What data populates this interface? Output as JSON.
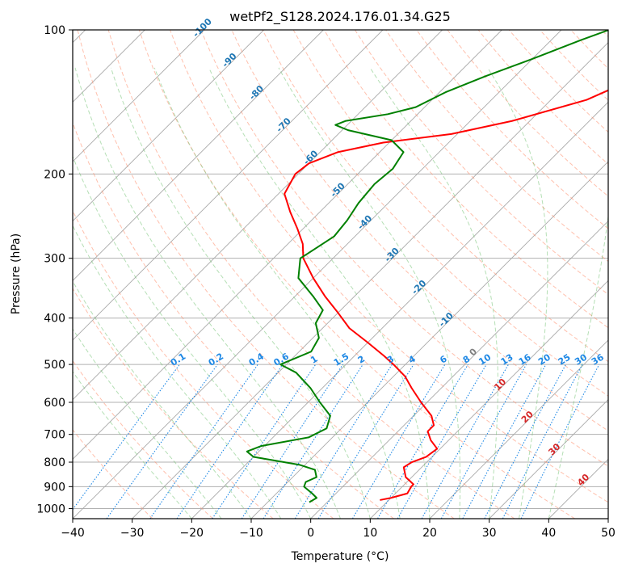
{
  "chart_data": {
    "type": "line",
    "title": "wetPf2_S128.2024.176.01.34.G25",
    "xlabel": "Temperature (°C)",
    "ylabel": "Pressure (hPa)",
    "xlim": [
      -40,
      50
    ],
    "ylim": [
      1050,
      100
    ],
    "x_ticks": [
      -40,
      -30,
      -20,
      -10,
      0,
      10,
      20,
      30,
      40,
      50
    ],
    "y_ticks": [
      100,
      200,
      300,
      400,
      500,
      600,
      700,
      800,
      900,
      1000
    ],
    "y_scale": "log",
    "grid": true,
    "isotherm_labels": [
      "-100",
      "-90",
      "-80",
      "-70",
      "-60",
      "-50",
      "-40",
      "-30",
      "-20",
      "-10",
      "0",
      "10",
      "20",
      "30",
      "40"
    ],
    "mixing_ratio_labels": [
      "0.1",
      "0.2",
      "0.4",
      "0.6",
      "1",
      "1.5",
      "2",
      "3",
      "4",
      "6",
      "8",
      "10",
      "13",
      "16",
      "20",
      "25",
      "30",
      "36"
    ],
    "series": [
      {
        "color": "#ff0000",
        "points": [
          {
            "p": 100,
            "t": -10.5
          },
          {
            "p": 110,
            "t": -13.5
          },
          {
            "p": 125,
            "t": -19
          },
          {
            "p": 140,
            "t": -24
          },
          {
            "p": 155,
            "t": -33
          },
          {
            "p": 165,
            "t": -41
          },
          {
            "p": 172,
            "t": -51
          },
          {
            "p": 180,
            "t": -57
          },
          {
            "p": 190,
            "t": -60
          },
          {
            "p": 200,
            "t": -60.5
          },
          {
            "p": 220,
            "t": -59
          },
          {
            "p": 240,
            "t": -55
          },
          {
            "p": 260,
            "t": -51
          },
          {
            "p": 280,
            "t": -47.5
          },
          {
            "p": 300,
            "t": -45
          },
          {
            "p": 330,
            "t": -40
          },
          {
            "p": 360,
            "t": -35
          },
          {
            "p": 390,
            "t": -30
          },
          {
            "p": 420,
            "t": -25.5
          },
          {
            "p": 450,
            "t": -20
          },
          {
            "p": 480,
            "t": -15
          },
          {
            "p": 500,
            "t": -12
          },
          {
            "p": 530,
            "t": -8
          },
          {
            "p": 560,
            "t": -5
          },
          {
            "p": 600,
            "t": -1
          },
          {
            "p": 640,
            "t": 3
          },
          {
            "p": 670,
            "t": 5
          },
          {
            "p": 690,
            "t": 5
          },
          {
            "p": 720,
            "t": 7
          },
          {
            "p": 750,
            "t": 9.5
          },
          {
            "p": 780,
            "t": 9
          },
          {
            "p": 800,
            "t": 7.5
          },
          {
            "p": 820,
            "t": 7
          },
          {
            "p": 860,
            "t": 9
          },
          {
            "p": 890,
            "t": 11.5
          },
          {
            "p": 900,
            "t": 11.5
          },
          {
            "p": 930,
            "t": 12
          },
          {
            "p": 950,
            "t": 10
          },
          {
            "p": 960,
            "t": 8.5
          }
        ]
      },
      {
        "color": "#008000",
        "points": [
          {
            "p": 100,
            "t": -32
          },
          {
            "p": 105,
            "t": -35
          },
          {
            "p": 115,
            "t": -40
          },
          {
            "p": 125,
            "t": -45
          },
          {
            "p": 135,
            "t": -49
          },
          {
            "p": 145,
            "t": -51.5
          },
          {
            "p": 150,
            "t": -55
          },
          {
            "p": 155,
            "t": -61
          },
          {
            "p": 158,
            "t": -62
          },
          {
            "p": 162,
            "t": -59
          },
          {
            "p": 170,
            "t": -50
          },
          {
            "p": 180,
            "t": -46
          },
          {
            "p": 195,
            "t": -45
          },
          {
            "p": 210,
            "t": -45.5
          },
          {
            "p": 230,
            "t": -45
          },
          {
            "p": 250,
            "t": -44
          },
          {
            "p": 270,
            "t": -43.5
          },
          {
            "p": 285,
            "t": -44.5
          },
          {
            "p": 300,
            "t": -45.5
          },
          {
            "p": 330,
            "t": -42.5
          },
          {
            "p": 360,
            "t": -37
          },
          {
            "p": 385,
            "t": -33
          },
          {
            "p": 410,
            "t": -32
          },
          {
            "p": 440,
            "t": -29
          },
          {
            "p": 470,
            "t": -28
          },
          {
            "p": 500,
            "t": -31
          },
          {
            "p": 520,
            "t": -27
          },
          {
            "p": 560,
            "t": -22
          },
          {
            "p": 600,
            "t": -18
          },
          {
            "p": 640,
            "t": -14
          },
          {
            "p": 680,
            "t": -12.5
          },
          {
            "p": 710,
            "t": -14
          },
          {
            "p": 740,
            "t": -20.5
          },
          {
            "p": 760,
            "t": -22
          },
          {
            "p": 780,
            "t": -20
          },
          {
            "p": 810,
            "t": -11
          },
          {
            "p": 830,
            "t": -7.5
          },
          {
            "p": 860,
            "t": -6
          },
          {
            "p": 880,
            "t": -7
          },
          {
            "p": 900,
            "t": -6.5
          },
          {
            "p": 930,
            "t": -4
          },
          {
            "p": 950,
            "t": -2.5
          },
          {
            "p": 970,
            "t": -3
          }
        ]
      }
    ]
  }
}
